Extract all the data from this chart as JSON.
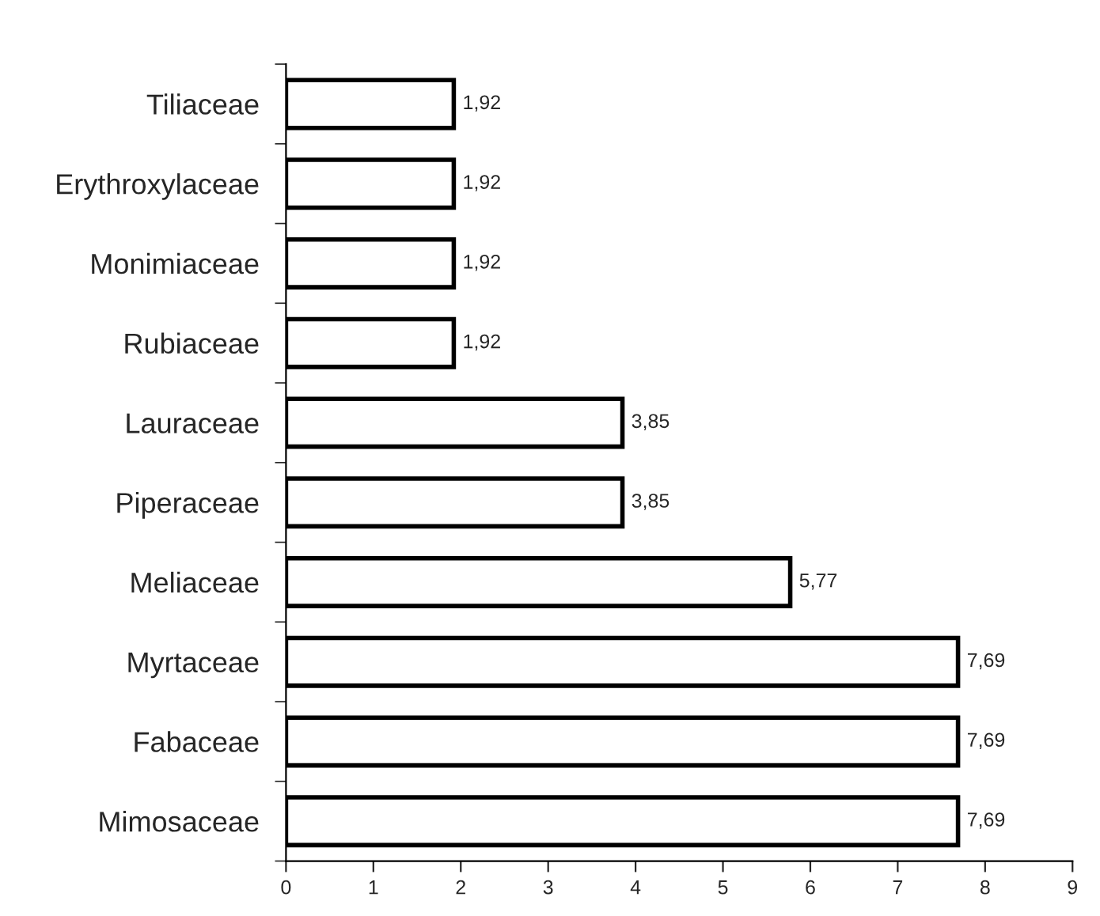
{
  "chart_data": {
    "type": "bar",
    "orientation": "horizontal",
    "categories": [
      "Tiliaceae",
      "Erythroxylaceae",
      "Monimiaceae",
      "Rubiaceae",
      "Lauraceae",
      "Piperaceae",
      "Meliaceae",
      "Myrtaceae",
      "Fabaceae",
      "Mimosaceae"
    ],
    "values": [
      1.92,
      1.92,
      1.92,
      1.92,
      3.85,
      3.85,
      5.77,
      7.69,
      7.69,
      7.69
    ],
    "value_labels": [
      "1,92",
      "1,92",
      "1,92",
      "1,92",
      "3,85",
      "3,85",
      "5,77",
      "7,69",
      "7,69",
      "7,69"
    ],
    "color": "#ffffff",
    "xlim": [
      0,
      9
    ],
    "xticks": [
      0,
      1,
      2,
      3,
      4,
      5,
      6,
      7,
      8,
      9
    ],
    "grid": false,
    "legend": false
  }
}
